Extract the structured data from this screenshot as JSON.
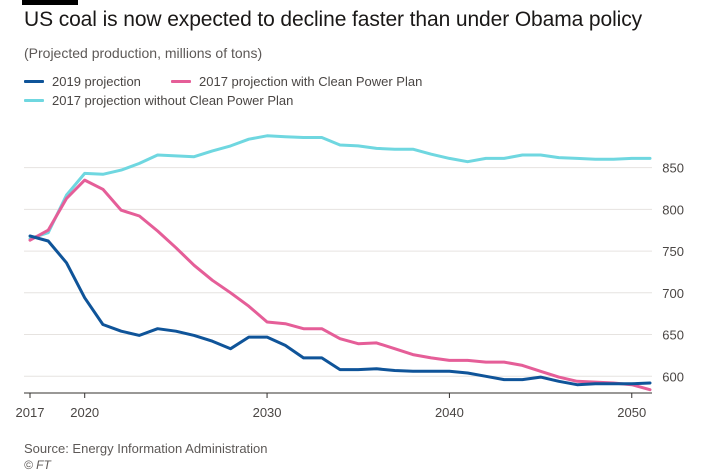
{
  "header": {
    "title": "US coal is now expected to decline faster than under Obama policy",
    "subtitle": "(Projected production, millions of tons)"
  },
  "footer": {
    "source": "Source: Energy Information Administration",
    "credit": "© FT"
  },
  "colors": {
    "2019": "#0f5499",
    "2017_cpp": "#e55e98",
    "2017_no_cpp": "#6fd7e0",
    "grid": "#e6e3e0",
    "baseline": "#33302e"
  },
  "chart_data": {
    "type": "line",
    "xlim": [
      2017,
      2051
    ],
    "ylim": [
      580,
      895
    ],
    "x_ticks": [
      {
        "value": 2017,
        "label": "2017"
      },
      {
        "value": 2020,
        "label": "2020"
      },
      {
        "value": 2030,
        "label": "2030"
      },
      {
        "value": 2040,
        "label": "2040"
      },
      {
        "value": 2050,
        "label": "2050"
      }
    ],
    "y_ticks": [
      600,
      650,
      700,
      750,
      800,
      850
    ],
    "grid": true,
    "legend_position": "top-left",
    "series": [
      {
        "name": "2019 projection",
        "color_key": "2019",
        "x": [
          2017,
          2018,
          2019,
          2020,
          2021,
          2022,
          2023,
          2024,
          2025,
          2026,
          2027,
          2028,
          2029,
          2030,
          2031,
          2032,
          2033,
          2034,
          2035,
          2036,
          2037,
          2038,
          2039,
          2040,
          2041,
          2042,
          2043,
          2044,
          2045,
          2046,
          2047,
          2048,
          2049,
          2050,
          2051
        ],
        "y": [
          768,
          762,
          736,
          694,
          662,
          654,
          649,
          657,
          654,
          649,
          642,
          633,
          647,
          647,
          637,
          622,
          622,
          608,
          608,
          609,
          607,
          606,
          606,
          606,
          604,
          600,
          596,
          596,
          599,
          594,
          590,
          591,
          591,
          591,
          592
        ]
      },
      {
        "name": "2017 projection with Clean Power Plan",
        "color_key": "2017_cpp",
        "x": [
          2017,
          2018,
          2019,
          2020,
          2021,
          2022,
          2023,
          2024,
          2025,
          2026,
          2027,
          2028,
          2029,
          2030,
          2031,
          2032,
          2033,
          2034,
          2035,
          2036,
          2037,
          2038,
          2039,
          2040,
          2041,
          2042,
          2043,
          2044,
          2045,
          2046,
          2047,
          2048,
          2049,
          2050,
          2051
        ],
        "y": [
          763,
          775,
          813,
          835,
          824,
          799,
          792,
          774,
          754,
          733,
          715,
          700,
          684,
          665,
          663,
          657,
          657,
          645,
          639,
          640,
          633,
          626,
          622,
          619,
          619,
          617,
          617,
          613,
          606,
          599,
          594,
          593,
          592,
          590,
          584
        ]
      },
      {
        "name": "2017 projection without Clean Power Plan",
        "color_key": "2017_no_cpp",
        "x": [
          2017,
          2018,
          2019,
          2020,
          2021,
          2022,
          2023,
          2024,
          2025,
          2026,
          2027,
          2028,
          2029,
          2030,
          2031,
          2032,
          2033,
          2034,
          2035,
          2036,
          2037,
          2038,
          2039,
          2040,
          2041,
          2042,
          2043,
          2044,
          2045,
          2046,
          2047,
          2048,
          2049,
          2050,
          2051
        ],
        "y": [
          765,
          772,
          817,
          843,
          842,
          847,
          855,
          865,
          864,
          863,
          870,
          876,
          884,
          888,
          887,
          886,
          886,
          877,
          876,
          873,
          872,
          872,
          866,
          861,
          857,
          861,
          861,
          865,
          865,
          862,
          861,
          860,
          860,
          861,
          861
        ]
      }
    ]
  }
}
